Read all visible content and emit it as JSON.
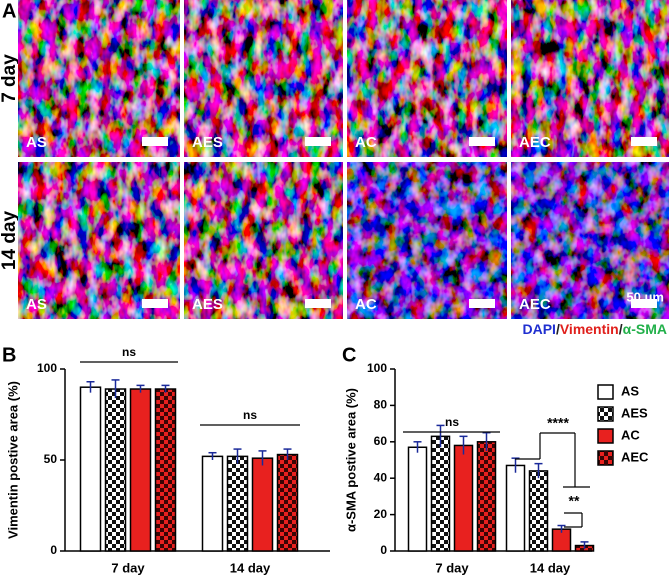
{
  "figure": {
    "label": "A",
    "rows": [
      "7 day",
      "14 day"
    ],
    "tiles": [
      [
        "AS",
        "AES",
        "AC",
        "AEC"
      ],
      [
        "AS",
        "AES",
        "AC",
        "AEC"
      ]
    ],
    "scale_bar": "50 μm",
    "stain": [
      {
        "text": "DAPI",
        "color": "#1f2fd0"
      },
      {
        "text": "/",
        "color": "#222222"
      },
      {
        "text": "Vimentin",
        "color": "#e0201c"
      },
      {
        "text": "/",
        "color": "#222222"
      },
      {
        "text": "α-SMA",
        "color": "#22b04a"
      }
    ]
  },
  "chart_data": [
    {
      "type": "bar",
      "label": "B",
      "y_label": "Vimentin postive area (%)",
      "categories": [
        "7 day",
        "14 day"
      ],
      "series": [
        {
          "name": "AS",
          "color": "#ffffff",
          "checker": false,
          "values": [
            90,
            52
          ],
          "errors": [
            3,
            2
          ]
        },
        {
          "name": "AES",
          "color": "#ffffff",
          "checker": true,
          "values": [
            89,
            52
          ],
          "errors": [
            5,
            4
          ]
        },
        {
          "name": "AC",
          "color": "#e8211f",
          "checker": false,
          "values": [
            89,
            51
          ],
          "errors": [
            2,
            4
          ]
        },
        {
          "name": "AEC",
          "color": "#e8211f",
          "checker": true,
          "values": [
            89,
            53
          ],
          "errors": [
            2,
            3
          ]
        }
      ],
      "ylim": [
        0,
        100
      ],
      "yticks": [
        0,
        50,
        100
      ],
      "annotations": [
        "ns",
        "ns"
      ]
    },
    {
      "type": "bar",
      "label": "C",
      "y_label": "α-SMA postive area (%)",
      "categories": [
        "7 day",
        "14 day"
      ],
      "series": [
        {
          "name": "AS",
          "color": "#ffffff",
          "checker": false,
          "values": [
            57,
            47
          ],
          "errors": [
            3,
            4
          ]
        },
        {
          "name": "AES",
          "color": "#ffffff",
          "checker": true,
          "values": [
            63,
            44
          ],
          "errors": [
            6,
            4
          ]
        },
        {
          "name": "AC",
          "color": "#e8211f",
          "checker": false,
          "values": [
            58,
            12
          ],
          "errors": [
            5,
            2
          ]
        },
        {
          "name": "AEC",
          "color": "#e8211f",
          "checker": true,
          "values": [
            60,
            3
          ],
          "errors": [
            5,
            2
          ]
        }
      ],
      "ylim": [
        0,
        100
      ],
      "yticks": [
        0,
        20,
        40,
        60,
        80,
        100
      ],
      "legend": "right",
      "annotations": [
        "ns",
        "****",
        "**"
      ]
    }
  ]
}
